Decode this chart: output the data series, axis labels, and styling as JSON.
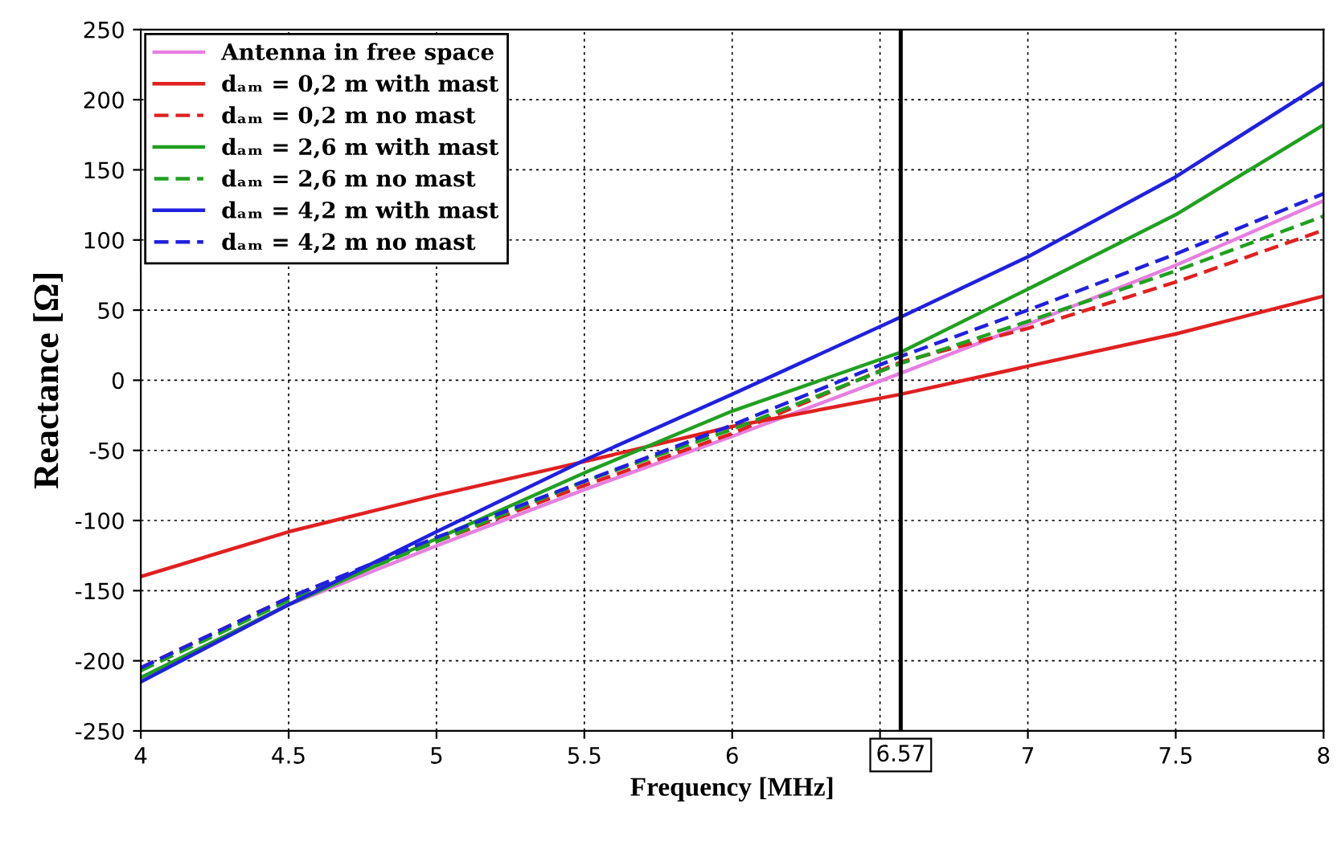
{
  "chart_data": {
    "type": "line",
    "xlabel": "Frequency [MHz]",
    "ylabel": "Reactance [Ω]",
    "x": [
      4,
      4.5,
      5,
      5.5,
      6,
      6.57,
      7,
      7.5,
      8
    ],
    "series": [
      {
        "name": "Antenna in free space",
        "color": "#e67fe0",
        "line_style": "solid",
        "values": [
          -212,
          -160,
          -118,
          -78,
          -40,
          5,
          40,
          82,
          128
        ]
      },
      {
        "name": "dₐₘ = 0,2 m with mast",
        "color": "#e02020",
        "line_style": "solid",
        "values": [
          -140,
          -108,
          -82,
          -58,
          -33,
          -10,
          10,
          33,
          60
        ]
      },
      {
        "name": "dₐₘ = 0,2 m no mast",
        "color": "#e02020",
        "line_style": "dashed",
        "values": [
          -205,
          -155,
          -115,
          -75,
          -38,
          13,
          37,
          70,
          107
        ]
      },
      {
        "name": "dₐₘ = 2,6 m with mast",
        "color": "#20a020",
        "line_style": "solid",
        "values": [
          -212,
          -160,
          -113,
          -66,
          -22,
          20,
          65,
          118,
          182
        ]
      },
      {
        "name": "dₐₘ = 2,6 m no mast",
        "color": "#20a020",
        "line_style": "dashed",
        "values": [
          -207,
          -157,
          -115,
          -72,
          -35,
          12,
          42,
          78,
          117
        ]
      },
      {
        "name": "dₐₘ = 4,2 m with mast",
        "color": "#2020e0",
        "line_style": "solid",
        "values": [
          -215,
          -160,
          -108,
          -57,
          -10,
          45,
          88,
          145,
          212
        ]
      },
      {
        "name": "dₐₘ = 4,2 m no mast",
        "color": "#2020e0",
        "line_style": "dashed",
        "values": [
          -205,
          -155,
          -112,
          -72,
          -32,
          17,
          50,
          90,
          133
        ]
      }
    ],
    "xlim": [
      4,
      8
    ],
    "xticks": [
      4,
      4.5,
      5,
      5.5,
      6,
      {
        "value": 6.5,
        "label": null
      },
      7,
      7.5,
      8
    ],
    "ylim": [
      -250,
      250
    ],
    "yticks": [
      -250,
      -200,
      -150,
      -100,
      -50,
      0,
      50,
      100,
      150,
      200,
      250
    ],
    "ref_lines": [
      {
        "axis": "x",
        "value": 6.57,
        "label": "6.57",
        "color": "#000000",
        "line_style": "solid"
      }
    ],
    "grid": true,
    "legend": "top left",
    "marker": "none"
  }
}
